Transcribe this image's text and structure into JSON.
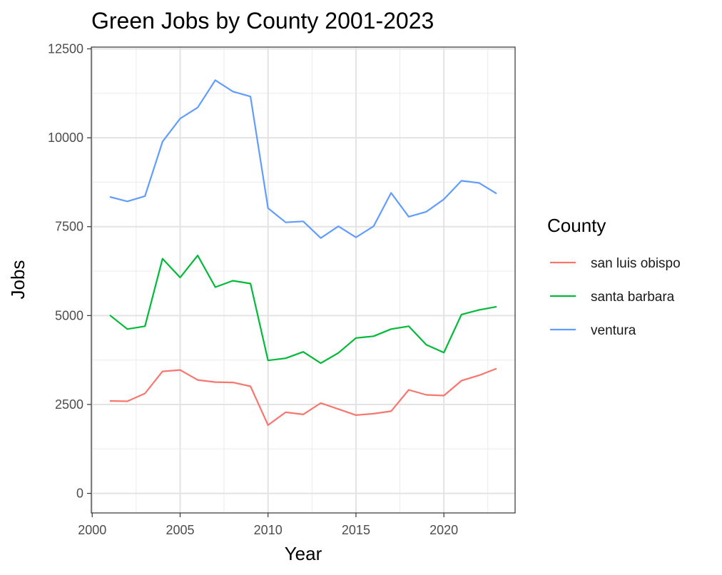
{
  "chart_data": {
    "type": "line",
    "title": "Green Jobs by County 2001-2023",
    "xlabel": "Year",
    "ylabel": "Jobs",
    "xlim": [
      1999.95,
      2024.05
    ],
    "ylim": [
      -550,
      12550
    ],
    "x_ticks": [
      2000,
      2005,
      2010,
      2015,
      2020
    ],
    "x_tick_labels": [
      "2000",
      "2005",
      "2010",
      "2015",
      "2020"
    ],
    "x_minor": [
      2002.5,
      2007.5,
      2012.5,
      2017.5,
      2022.5
    ],
    "y_ticks": [
      0,
      2500,
      5000,
      7500,
      10000,
      12500
    ],
    "y_tick_labels": [
      "0",
      "2500",
      "5000",
      "7500",
      "10000",
      "12500"
    ],
    "y_minor": [
      1250,
      3750,
      6250,
      8750,
      11250
    ],
    "grid": true,
    "legend": {
      "title": "County",
      "position": "right"
    },
    "x": [
      2001,
      2002,
      2003,
      2004,
      2005,
      2006,
      2007,
      2008,
      2009,
      2010,
      2011,
      2012,
      2013,
      2014,
      2015,
      2016,
      2017,
      2018,
      2019,
      2020,
      2021,
      2022,
      2023
    ],
    "series": [
      {
        "name": "san luis obispo",
        "color": "#F8766D",
        "values": [
          2600,
          2590,
          2810,
          3430,
          3470,
          3190,
          3130,
          3120,
          3010,
          1920,
          2280,
          2220,
          2540,
          2370,
          2200,
          2240,
          2310,
          2910,
          2770,
          2750,
          3170,
          3320,
          3510
        ]
      },
      {
        "name": "santa barbara",
        "color": "#00BA38",
        "values": [
          5010,
          4620,
          4700,
          6600,
          6070,
          6690,
          5800,
          5980,
          5900,
          3740,
          3800,
          3980,
          3660,
          3950,
          4370,
          4420,
          4620,
          4700,
          4180,
          3960,
          5030,
          5160,
          5250
        ]
      },
      {
        "name": "ventura",
        "color": "#619CFF",
        "values": [
          8340,
          8210,
          8360,
          9890,
          10540,
          10850,
          11620,
          11300,
          11160,
          8020,
          7620,
          7650,
          7180,
          7510,
          7200,
          7510,
          8450,
          7780,
          7920,
          8270,
          8790,
          8730,
          8430
        ]
      }
    ]
  }
}
